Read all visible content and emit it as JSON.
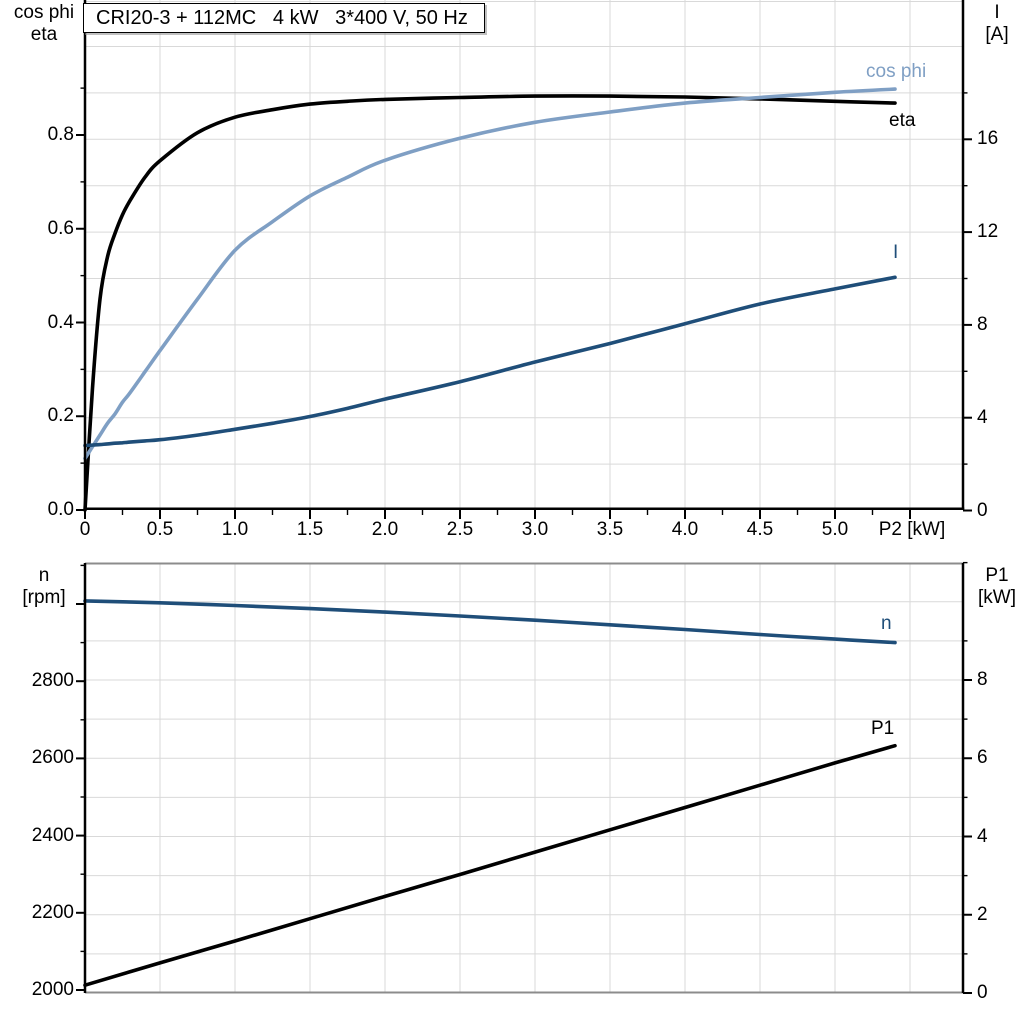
{
  "colors": {
    "eta": "#000000",
    "cos_phi": "#7f9fc4",
    "current": "#1f4e79",
    "speed": "#1f4e79",
    "p1": "#000000",
    "grid": "#d9d9d9",
    "panel_border": "#8c8c8c",
    "axis": "#000000"
  },
  "chart_data": [
    {
      "type": "line",
      "title": "CRI20-3 + 112MC   4 kW   3*400 V, 50 Hz",
      "xlabel": "P2 [kW]",
      "x_tick_labels": [
        "0",
        "0.5",
        "1.0",
        "1.5",
        "2.0",
        "2.5",
        "3.0",
        "3.5",
        "4.0",
        "4.5",
        "5.0"
      ],
      "x_tick_values": [
        0,
        0.5,
        1.0,
        1.5,
        2.0,
        2.5,
        3.0,
        3.5,
        4.0,
        4.5,
        5.0
      ],
      "x_extra_major_ticks": [
        5.5
      ],
      "x_minor_tick_step": 0.25,
      "xlim": [
        0,
        5.85
      ],
      "grid": "on",
      "legend_position": "inline-labels",
      "left_axis": {
        "label_line1": "cos phi",
        "label_line2": "eta",
        "tick_labels": [
          "0.0",
          "0.2",
          "0.4",
          "0.6",
          "0.8"
        ],
        "tick_values": [
          0.0,
          0.2,
          0.4,
          0.6,
          0.8
        ],
        "minor_tick_step": 0.1,
        "lim": [
          0,
          1.09
        ]
      },
      "right_axis": {
        "label_line1": "I",
        "label_line2": "[A]",
        "tick_labels": [
          "0",
          "4",
          "8",
          "12",
          "16"
        ],
        "tick_values": [
          0,
          4,
          8,
          12,
          16
        ],
        "minor_tick_step": 2,
        "grid_step": 2,
        "lim": [
          0,
          22
        ]
      },
      "series": [
        {
          "name": "eta",
          "axis": "left",
          "color_key": "eta",
          "x": [
            0,
            0.05,
            0.1,
            0.15,
            0.2,
            0.25,
            0.3,
            0.4,
            0.5,
            0.75,
            1.0,
            1.25,
            1.5,
            1.75,
            2.0,
            2.5,
            3.0,
            3.5,
            4.0,
            4.5,
            5.0,
            5.4
          ],
          "values": [
            0,
            0.26,
            0.45,
            0.54,
            0.59,
            0.63,
            0.66,
            0.71,
            0.745,
            0.805,
            0.838,
            0.854,
            0.866,
            0.872,
            0.876,
            0.88,
            0.883,
            0.883,
            0.881,
            0.877,
            0.872,
            0.868
          ]
        },
        {
          "name": "cos phi",
          "axis": "left",
          "color_key": "cos_phi",
          "x": [
            0,
            0.05,
            0.1,
            0.15,
            0.2,
            0.25,
            0.3,
            0.4,
            0.5,
            0.75,
            1.0,
            1.25,
            1.5,
            1.75,
            2.0,
            2.5,
            3.0,
            3.5,
            4.0,
            4.5,
            5.0,
            5.4
          ],
          "values": [
            0.11,
            0.135,
            0.16,
            0.185,
            0.205,
            0.23,
            0.25,
            0.295,
            0.34,
            0.45,
            0.554,
            0.615,
            0.67,
            0.71,
            0.746,
            0.793,
            0.827,
            0.849,
            0.868,
            0.88,
            0.891,
            0.898
          ]
        },
        {
          "name": "I",
          "axis": "right",
          "color_key": "current",
          "x": [
            0,
            0.05,
            0.1,
            0.15,
            0.2,
            0.25,
            0.3,
            0.4,
            0.5,
            0.75,
            1.0,
            1.25,
            1.5,
            1.75,
            2.0,
            2.5,
            3.0,
            3.5,
            4.0,
            4.5,
            5.0,
            5.4
          ],
          "values": [
            2.8,
            2.82,
            2.84,
            2.87,
            2.9,
            2.92,
            2.95,
            3.0,
            3.05,
            3.25,
            3.5,
            3.76,
            4.05,
            4.4,
            4.8,
            5.55,
            6.4,
            7.2,
            8.05,
            8.9,
            9.55,
            10.05
          ]
        }
      ]
    },
    {
      "type": "line",
      "title": "",
      "xlabel": "",
      "x_tick_labels": [],
      "x_tick_values": [],
      "xlim": [
        0,
        5.85
      ],
      "grid": "on",
      "legend_position": "inline-labels",
      "left_axis": {
        "label_line1": "n",
        "label_line2": "[rpm]",
        "tick_labels": [
          "2000",
          "2200",
          "2400",
          "2600",
          "2800"
        ],
        "tick_values": [
          2000,
          2200,
          2400,
          2600,
          2800
        ],
        "extra_major_ticks": [
          3000
        ],
        "minor_tick_step": 100,
        "lim": [
          2000,
          3113
        ]
      },
      "right_axis": {
        "label_line1": "P1",
        "label_line2": "[kW]",
        "tick_labels": [
          "0",
          "2",
          "4",
          "6",
          "8"
        ],
        "tick_values": [
          0,
          2,
          4,
          6,
          8
        ],
        "minor_tick_step": 1,
        "grid_step": 1,
        "lim": [
          0,
          11
        ]
      },
      "series": [
        {
          "name": "n",
          "axis": "left",
          "color_key": "speed",
          "x": [
            0,
            0.5,
            1.0,
            1.5,
            2.0,
            2.5,
            3.0,
            3.5,
            4.0,
            4.5,
            5.0,
            5.4
          ],
          "values": [
            3008,
            3003,
            2996,
            2988,
            2979,
            2969,
            2958,
            2946,
            2934,
            2921,
            2909,
            2900
          ]
        },
        {
          "name": "P1",
          "axis": "right",
          "color_key": "p1",
          "x": [
            0,
            0.5,
            1.0,
            1.5,
            2.0,
            2.5,
            3.0,
            3.5,
            4.0,
            4.5,
            5.0,
            5.4
          ],
          "values": [
            0.2,
            0.77,
            1.33,
            1.9,
            2.47,
            3.03,
            3.6,
            4.17,
            4.74,
            5.31,
            5.88,
            6.32
          ]
        }
      ]
    }
  ]
}
